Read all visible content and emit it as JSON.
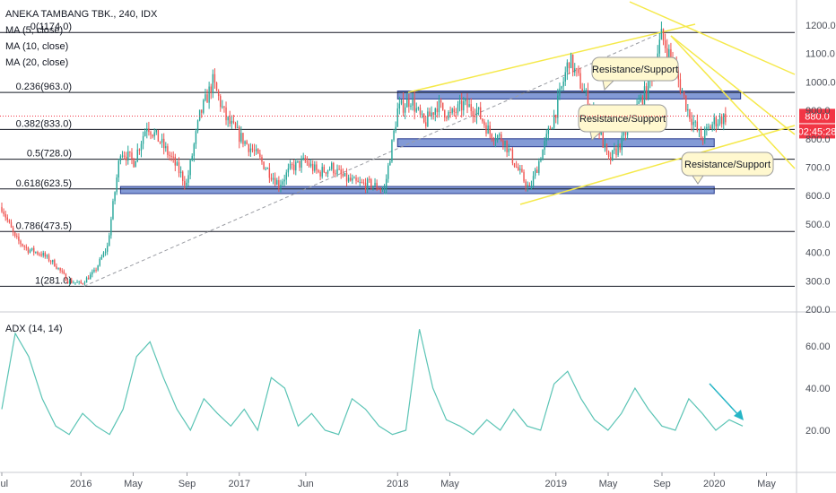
{
  "legend": {
    "title": "ANEKA TAMBANG TBK., 240, IDX",
    "ma1": "MA (5, close)",
    "ma2": "MA (10, close)",
    "ma3": "MA (20, close)",
    "adx": "ADX (14, 14)"
  },
  "colors": {
    "up": "#26a69a",
    "down": "#ef5350",
    "zone_fill": "#5a78c8",
    "zone_border": "#2a3d8f",
    "trend_line": "#f5e94a",
    "fib_line": "#131722",
    "adx_line": "#5bc4b5",
    "price_tag": "#f23645",
    "arrow": "#26b5c6"
  },
  "chart_data": [
    {
      "type": "candlestick",
      "title": "ANEKA TAMBANG TBK., 240, IDX",
      "ylim": [
        200,
        1250
      ],
      "y_ticks": [
        "200.0",
        "300.0",
        "400.0",
        "500.0",
        "600.0",
        "700.0",
        "800.0",
        "900.0",
        "1000.0",
        "1100.0",
        "1200.0"
      ],
      "x_ticks": [
        "Jul",
        "2016",
        "May",
        "Sep",
        "2017",
        "Jun",
        "2018",
        "May",
        "2019",
        "May",
        "Sep",
        "2020",
        "May"
      ],
      "last_price": "880.0",
      "countdown": "02:45:28",
      "fibonacci": [
        {
          "label": "0(1174.0)",
          "value": 1174
        },
        {
          "label": "0.236(963.0)",
          "value": 963
        },
        {
          "label": "0.382(833.0)",
          "value": 833
        },
        {
          "label": "0.5(728.0)",
          "value": 728
        },
        {
          "label": "0.618(623.5)",
          "value": 623.5
        },
        {
          "label": "0.786(473.5)",
          "value": 473.5
        },
        {
          "label": "1(281.0)",
          "value": 281
        }
      ],
      "zones": [
        {
          "from": "2018-01",
          "to": "2020-03",
          "low": 940,
          "high": 968
        },
        {
          "from": "2018-01",
          "to": "2020-01",
          "low": 772,
          "high": 800
        },
        {
          "from": "2016-04",
          "to": "2020-01",
          "low": 607,
          "high": 632
        }
      ],
      "annotations": [
        "Resistance/Support",
        "Resistance/Support",
        "Resistance/Support"
      ],
      "price_path": [
        [
          "2015-07",
          560
        ],
        [
          "2015-08",
          450
        ],
        [
          "2015-09",
          410
        ],
        [
          "2015-10",
          395
        ],
        [
          "2015-11",
          360
        ],
        [
          "2015-12",
          300
        ],
        [
          "2016-01",
          290
        ],
        [
          "2016-02",
          330
        ],
        [
          "2016-03",
          420
        ],
        [
          "2016-04",
          760
        ],
        [
          "2016-05",
          720
        ],
        [
          "2016-06",
          850
        ],
        [
          "2016-07",
          790
        ],
        [
          "2016-08",
          720
        ],
        [
          "2016-09",
          640
        ],
        [
          "2016-10",
          880
        ],
        [
          "2016-11",
          1000
        ],
        [
          "2016-12",
          870
        ],
        [
          "2017-01",
          810
        ],
        [
          "2017-02",
          760
        ],
        [
          "2017-03",
          700
        ],
        [
          "2017-04",
          640
        ],
        [
          "2017-05",
          700
        ],
        [
          "2017-06",
          720
        ],
        [
          "2017-07",
          680
        ],
        [
          "2017-08",
          700
        ],
        [
          "2017-09",
          660
        ],
        [
          "2017-10",
          640
        ],
        [
          "2017-11",
          640
        ],
        [
          "2017-12",
          620
        ],
        [
          "2018-01",
          900
        ],
        [
          "2018-02",
          940
        ],
        [
          "2018-03",
          850
        ],
        [
          "2018-04",
          920
        ],
        [
          "2018-05",
          880
        ],
        [
          "2018-06",
          920
        ],
        [
          "2018-07",
          900
        ],
        [
          "2018-08",
          820
        ],
        [
          "2018-09",
          800
        ],
        [
          "2018-10",
          700
        ],
        [
          "2018-11",
          620
        ],
        [
          "2018-12",
          760
        ],
        [
          "2019-01",
          900
        ],
        [
          "2019-02",
          1080
        ],
        [
          "2019-03",
          980
        ],
        [
          "2019-04",
          870
        ],
        [
          "2019-05",
          720
        ],
        [
          "2019-06",
          790
        ],
        [
          "2019-07",
          900
        ],
        [
          "2019-08",
          980
        ],
        [
          "2019-09",
          1160
        ],
        [
          "2019-10",
          1050
        ],
        [
          "2019-11",
          900
        ],
        [
          "2019-12",
          800
        ],
        [
          "2020-01",
          860
        ],
        [
          "2020-02",
          880
        ]
      ]
    },
    {
      "type": "line",
      "title": "ADX (14, 14)",
      "ylim": [
        8,
        75
      ],
      "y_ticks": [
        "20.00",
        "40.00",
        "60.00"
      ],
      "values": [
        30,
        66,
        55,
        35,
        22,
        18,
        28,
        22,
        18,
        30,
        55,
        62,
        45,
        30,
        20,
        35,
        28,
        22,
        30,
        20,
        45,
        40,
        22,
        28,
        20,
        18,
        35,
        30,
        22,
        18,
        20,
        68,
        40,
        25,
        22,
        18,
        25,
        20,
        30,
        22,
        20,
        42,
        48,
        35,
        25,
        20,
        28,
        40,
        30,
        22,
        20,
        35,
        28,
        20,
        25,
        22
      ]
    }
  ]
}
